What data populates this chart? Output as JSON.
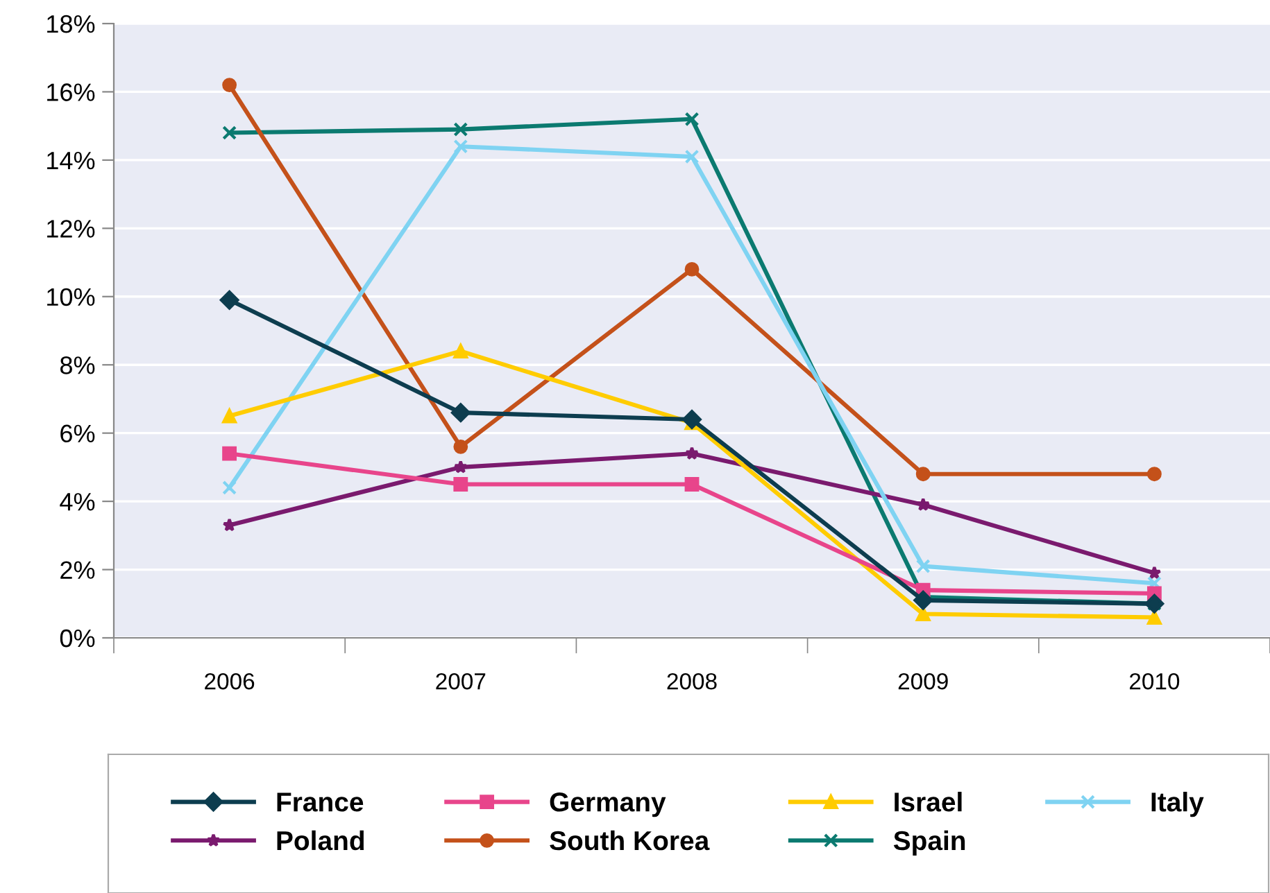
{
  "chart_data": {
    "type": "line",
    "categories": [
      "2006",
      "2007",
      "2008",
      "2009",
      "2010"
    ],
    "series": [
      {
        "name": "France",
        "color": "#0d3d4f",
        "marker": "diamond",
        "values": [
          9.9,
          6.6,
          6.4,
          1.1,
          1.0
        ]
      },
      {
        "name": "Germany",
        "color": "#e8458b",
        "marker": "square",
        "values": [
          5.4,
          4.5,
          4.5,
          1.4,
          1.3
        ]
      },
      {
        "name": "Israel",
        "color": "#ffcc00",
        "marker": "triangle",
        "values": [
          6.5,
          8.4,
          6.3,
          0.7,
          0.6
        ]
      },
      {
        "name": "Italy",
        "color": "#7fd3f2",
        "marker": "cross",
        "values": [
          4.4,
          14.4,
          14.1,
          2.1,
          1.6
        ]
      },
      {
        "name": "Poland",
        "color": "#7a1a6e",
        "marker": "star",
        "values": [
          3.3,
          5.0,
          5.4,
          3.9,
          1.9
        ]
      },
      {
        "name": "South Korea",
        "color": "#c4511a",
        "marker": "circle",
        "values": [
          16.2,
          5.6,
          10.8,
          4.8,
          4.8
        ]
      },
      {
        "name": "Spain",
        "color": "#0b7a70",
        "marker": "cross",
        "values": [
          14.8,
          14.9,
          15.2,
          1.2,
          1.0
        ]
      }
    ],
    "ylim": [
      0,
      18
    ],
    "yticks": [
      {
        "value": 0,
        "label": "0%"
      },
      {
        "value": 2,
        "label": "2%"
      },
      {
        "value": 4,
        "label": "4%"
      },
      {
        "value": 6,
        "label": "6%"
      },
      {
        "value": 8,
        "label": "8%"
      },
      {
        "value": 10,
        "label": "10%"
      },
      {
        "value": 12,
        "label": "12%"
      },
      {
        "value": 14,
        "label": "14%"
      },
      {
        "value": 16,
        "label": "16%"
      },
      {
        "value": 18,
        "label": "18%"
      }
    ],
    "grid": "y",
    "legend": "bottom",
    "line_style": "solid"
  }
}
